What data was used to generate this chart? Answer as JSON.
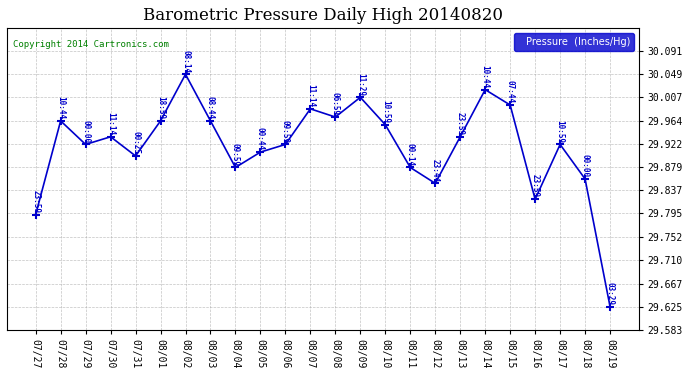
{
  "title": "Barometric Pressure Daily High 20140820",
  "copyright": "Copyright 2014 Cartronics.com",
  "legend_label": "Pressure  (Inches/Hg)",
  "x_labels": [
    "07/27",
    "07/28",
    "07/29",
    "07/30",
    "07/31",
    "08/01",
    "08/02",
    "08/03",
    "08/04",
    "08/05",
    "08/06",
    "08/07",
    "08/08",
    "08/09",
    "08/10",
    "08/11",
    "08/12",
    "08/13",
    "08/14",
    "08/15",
    "08/16",
    "08/17",
    "08/18",
    "08/19"
  ],
  "y_values": [
    29.793,
    29.964,
    29.921,
    29.935,
    29.9,
    29.964,
    30.049,
    29.964,
    29.879,
    29.907,
    29.921,
    29.986,
    29.971,
    30.007,
    29.957,
    29.879,
    29.85,
    29.935,
    30.021,
    29.993,
    29.821,
    29.921,
    29.858,
    29.625
  ],
  "point_labels": [
    "23:59",
    "10:44",
    "00:00",
    "11:14",
    "00:25",
    "18:59",
    "08:14",
    "08:44",
    "09:59",
    "00:44",
    "09:59",
    "11:14",
    "06:59",
    "11:29",
    "10:59",
    "00:14",
    "23:44",
    "23:59",
    "10:44",
    "07:44",
    "23:59",
    "10:59",
    "00:00",
    "03:29"
  ],
  "ylim_min": 29.583,
  "ylim_max": 30.133,
  "yticks": [
    29.583,
    29.625,
    29.667,
    29.71,
    29.752,
    29.795,
    29.837,
    29.879,
    29.922,
    29.964,
    30.007,
    30.049,
    30.091
  ],
  "line_color": "#0000CC",
  "marker_color": "#0000CC",
  "label_color": "#0000CC",
  "bg_color": "#FFFFFF",
  "grid_color": "#AAAAAA",
  "title_color": "#000000",
  "legend_bg": "#0000CC",
  "legend_text": "#FFFFFF",
  "copyright_color": "#008000"
}
